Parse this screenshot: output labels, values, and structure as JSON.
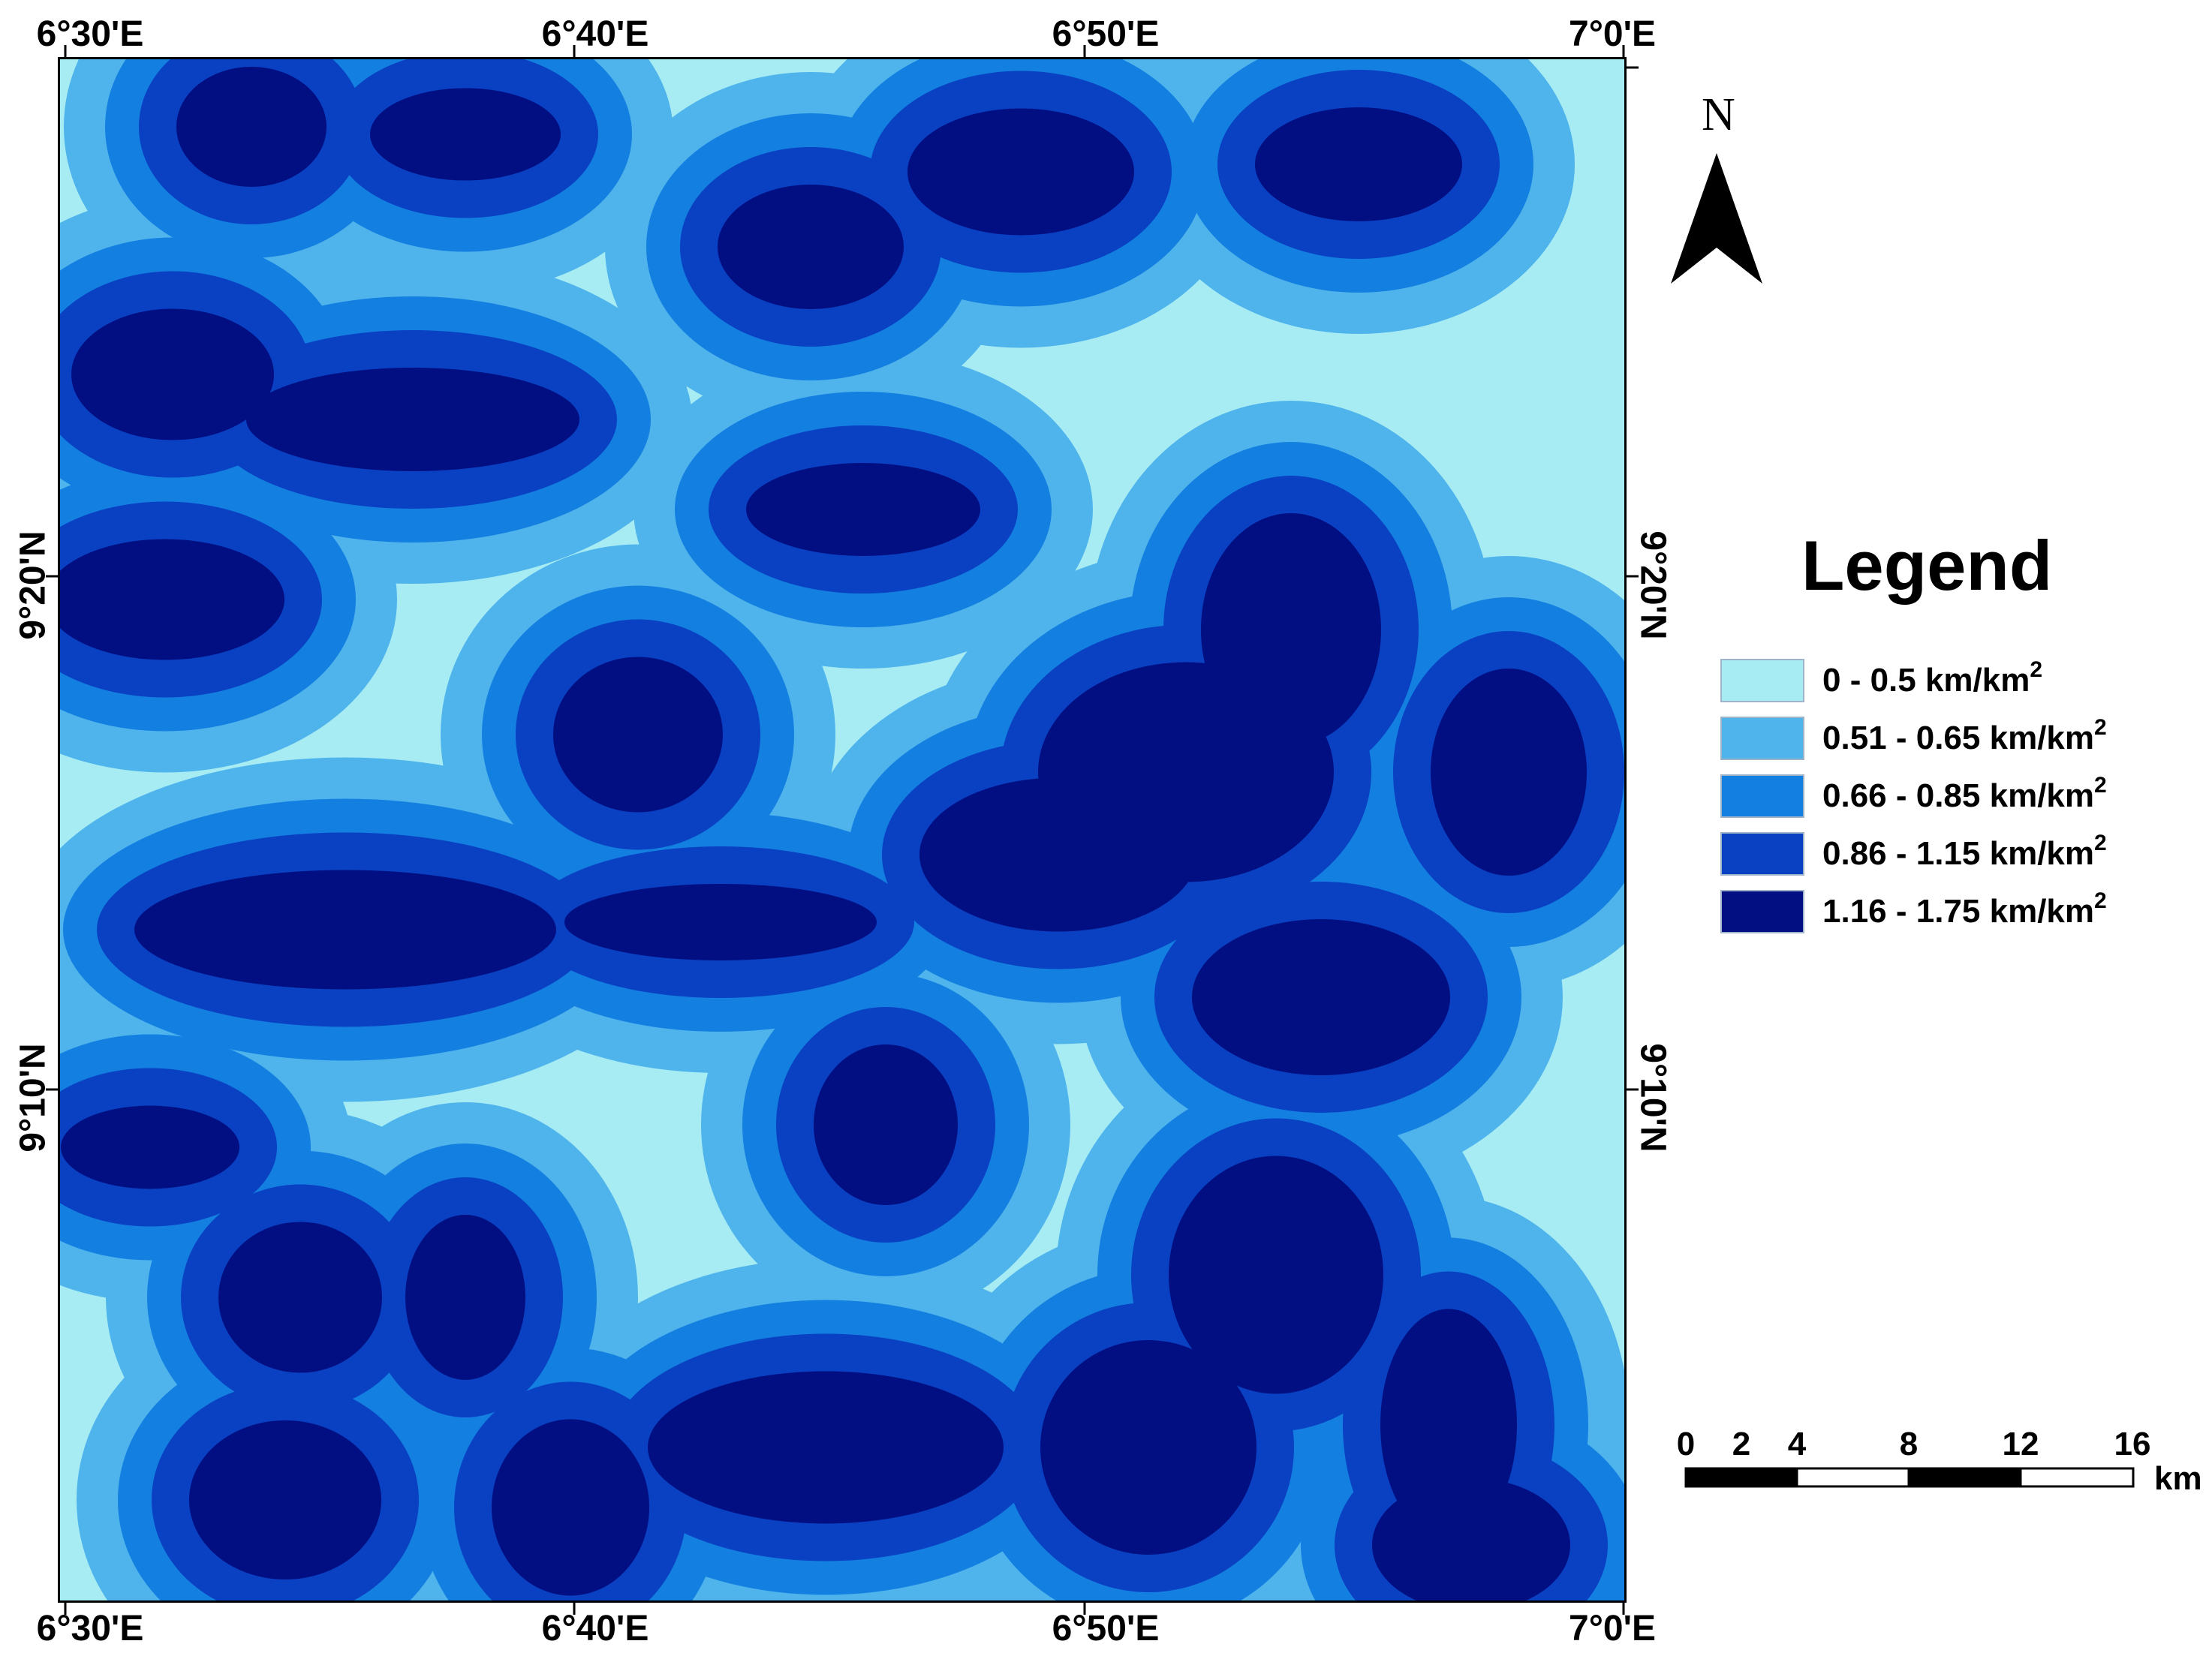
{
  "map": {
    "x_ticks": [
      "6°30'E",
      "6°40'E",
      "6°50'E",
      "7°0'E"
    ],
    "y_ticks": [
      "9°20'N",
      "9°10'N"
    ],
    "north_label": "N"
  },
  "legend": {
    "title": "Legend",
    "items": [
      {
        "label": "0 - 0.5 km/km",
        "sup": "2",
        "color": "#a7ecf3"
      },
      {
        "label": "0.51 - 0.65 km/km",
        "sup": "2",
        "color": "#4fb3ec"
      },
      {
        "label": "0.66 - 0.85 km/km",
        "sup": "2",
        "color": "#137fe0"
      },
      {
        "label": "0.86 - 1.15 km/km",
        "sup": "2",
        "color": "#0a40c2"
      },
      {
        "label": "1.16 - 1.75 km/km",
        "sup": "2",
        "color": "#020f82"
      }
    ]
  },
  "scale_bar": {
    "labels": [
      "0",
      "2",
      "4",
      "8",
      "12",
      "16"
    ],
    "unit": "km"
  }
}
